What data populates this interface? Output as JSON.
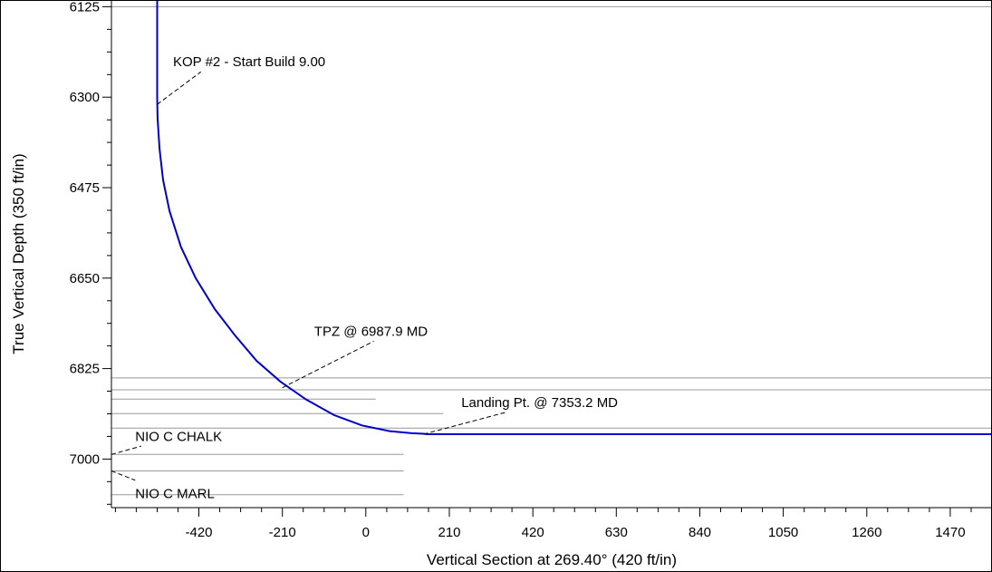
{
  "chart_data": {
    "type": "line",
    "xlabel": "Vertical Section at 269.40° (420 ft/in)",
    "ylabel": "True Vertical Depth (350 ft/in)",
    "xlim": [
      -640,
      1575
    ],
    "ylim": [
      6112,
      7094
    ],
    "y_inverted": true,
    "grid": false,
    "x_ticks": [
      -420,
      -210,
      0,
      210,
      420,
      630,
      840,
      1050,
      1260,
      1470
    ],
    "y_ticks": [
      6125,
      6300,
      6475,
      6650,
      6825,
      7000
    ],
    "x_minor_step": 52.5,
    "y_minor_step": 43.75,
    "series": [
      {
        "color": "#0000cc",
        "x": [
          -525,
          -525,
          -524,
          -519,
          -510,
          -494,
          -465,
          -428,
          -380,
          -330,
          -275,
          -215,
          -150,
          -80,
          -10,
          60,
          115,
          145,
          155,
          1575
        ],
        "y": [
          6112,
          6300,
          6340,
          6400,
          6460,
          6520,
          6590,
          6650,
          6710,
          6760,
          6810,
          6850,
          6885,
          6915,
          6935,
          6946,
          6950,
          6951,
          6952,
          6952
        ]
      }
    ],
    "formations": [
      {
        "y": 6125,
        "x_start": -640,
        "x_end": 1575
      },
      {
        "y": 6843,
        "x_start": -640,
        "x_end": 1575
      },
      {
        "y": 6866,
        "x_start": -640,
        "x_end": 1575
      },
      {
        "y": 6884,
        "x_start": -640,
        "x_end": 25
      },
      {
        "y": 6912,
        "x_start": -640,
        "x_end": 195
      },
      {
        "y": 6940,
        "x_start": -640,
        "x_end": 1575
      },
      {
        "y": 6991,
        "x_start": -640,
        "x_end": 95
      },
      {
        "y": 7023,
        "x_start": -640,
        "x_end": 95
      },
      {
        "y": 7069,
        "x_start": -640,
        "x_end": 95
      }
    ],
    "annotations": [
      {
        "text": "KOP #2 - Start Build 9.00",
        "point": [
          -525,
          6314
        ],
        "label": [
          -485,
          6240
        ],
        "elbow": [
          -415,
          6251
        ]
      },
      {
        "text": "TPZ @ 6987.9 MD",
        "point": [
          -210,
          6862
        ],
        "label": [
          -130,
          6762
        ],
        "elbow": [
          20,
          6772
        ]
      },
      {
        "text": "Landing Pt. @ 7353.2 MD",
        "point": [
          145,
          6952
        ],
        "label": [
          240,
          6899
        ],
        "elbow": [
          355,
          6909
        ]
      },
      {
        "text": "NIO C CHALK",
        "point": [
          -640,
          6991
        ],
        "label": [
          -580,
          6965
        ],
        "elbow": [
          -565,
          6975
        ]
      },
      {
        "text": "NIO C MARL",
        "point": [
          -640,
          7023
        ],
        "label": [
          -580,
          7076
        ],
        "elbow": [
          -580,
          7041
        ]
      }
    ]
  }
}
